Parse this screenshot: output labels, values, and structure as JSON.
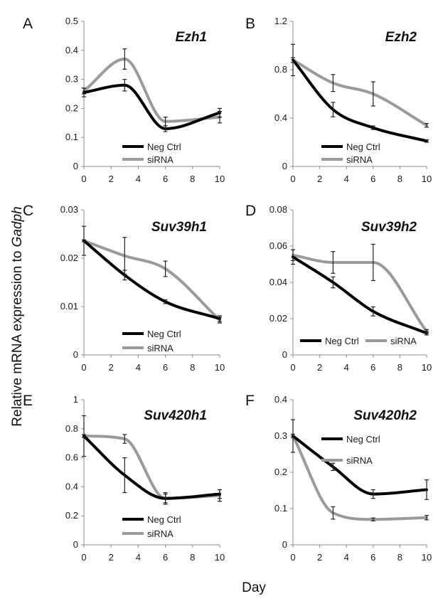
{
  "figure": {
    "ylabel_prefix": "Relative mRNA expression to ",
    "ylabel_gene": "Gadph",
    "xlabel": "Day"
  },
  "colors": {
    "neg": "#000000",
    "sirna": "#9a9a9a"
  },
  "chart_data": [
    {
      "panel": "A",
      "title": "Ezh1",
      "type": "line",
      "ylim": [
        0,
        0.5
      ],
      "yticks": [
        "0",
        "0.1",
        "0.2",
        "0.3",
        "0.4",
        "0.5"
      ],
      "xlim": [
        0,
        10
      ],
      "xticks": [
        "0",
        "2",
        "4",
        "6",
        "8",
        "10"
      ],
      "legend_position": "lower-middle",
      "series": [
        {
          "name": "Neg Ctrl",
          "color": "#000000",
          "x": [
            0,
            3,
            6,
            10
          ],
          "y": [
            0.255,
            0.28,
            0.13,
            0.185
          ],
          "err": [
            0.015,
            0.02,
            0.01,
            0.015
          ]
        },
        {
          "name": "siRNA",
          "color": "#9a9a9a",
          "x": [
            0,
            3,
            6,
            10
          ],
          "y": [
            0.26,
            0.37,
            0.155,
            0.17
          ],
          "err": [
            0.01,
            0.035,
            0.015,
            0.02
          ]
        }
      ]
    },
    {
      "panel": "B",
      "title": "Ezh2",
      "type": "line",
      "ylim": [
        0,
        1.2
      ],
      "yticks": [
        "0",
        "0.4",
        "0.8",
        "1.2"
      ],
      "xlim": [
        0,
        10
      ],
      "xticks": [
        "0",
        "2",
        "4",
        "6",
        "8",
        "10"
      ],
      "legend_position": "lower-middle",
      "series": [
        {
          "name": "Neg Ctrl",
          "color": "#000000",
          "x": [
            0,
            3,
            6,
            10
          ],
          "y": [
            0.88,
            0.47,
            0.32,
            0.21
          ],
          "err": [
            0.13,
            0.06,
            0.015,
            0.01
          ]
        },
        {
          "name": "siRNA",
          "color": "#9a9a9a",
          "x": [
            0,
            3,
            6,
            10
          ],
          "y": [
            0.88,
            0.69,
            0.6,
            0.34
          ],
          "err": [
            0.02,
            0.07,
            0.1,
            0.015
          ]
        }
      ]
    },
    {
      "panel": "C",
      "title": "Suv39h1",
      "type": "line",
      "ylim": [
        0,
        0.03
      ],
      "yticks": [
        "0",
        "0.01",
        "0.02",
        "0.03"
      ],
      "xlim": [
        0,
        10
      ],
      "xticks": [
        "0",
        "2",
        "4",
        "6",
        "8",
        "10"
      ],
      "legend_position": "lower-middle",
      "series": [
        {
          "name": "Neg Ctrl",
          "color": "#000000",
          "x": [
            0,
            3,
            6,
            10
          ],
          "y": [
            0.0236,
            0.0165,
            0.011,
            0.0075
          ],
          "err": [
            0.003,
            0.001,
            0.0004,
            0.0006
          ]
        },
        {
          "name": "siRNA",
          "color": "#9a9a9a",
          "x": [
            0,
            3,
            6,
            10
          ],
          "y": [
            0.0236,
            0.0205,
            0.0178,
            0.0072
          ],
          "err": [
            0.0002,
            0.0038,
            0.0016,
            0.0006
          ]
        }
      ]
    },
    {
      "panel": "D",
      "title": "Suv39h2",
      "type": "line",
      "ylim": [
        0,
        0.08
      ],
      "yticks": [
        "0",
        "0.02",
        "0.04",
        "0.06",
        "0.08"
      ],
      "xlim": [
        0,
        10
      ],
      "xticks": [
        "0",
        "2",
        "4",
        "6",
        "8",
        "10"
      ],
      "legend_position": "bottom",
      "series": [
        {
          "name": "Neg Ctrl",
          "color": "#000000",
          "x": [
            0,
            3,
            6,
            10
          ],
          "y": [
            0.054,
            0.04,
            0.024,
            0.012
          ],
          "err": [
            0.004,
            0.003,
            0.0025,
            0.001
          ]
        },
        {
          "name": "siRNA",
          "color": "#9a9a9a",
          "x": [
            0,
            3,
            6,
            10
          ],
          "y": [
            0.055,
            0.051,
            0.051,
            0.013
          ],
          "err": [
            0.003,
            0.006,
            0.01,
            0.001
          ]
        }
      ]
    },
    {
      "panel": "E",
      "title": "Suv420h1",
      "type": "line",
      "ylim": [
        0,
        1
      ],
      "yticks": [
        "0",
        "0.2",
        "0.4",
        "0.6",
        "0.8",
        "1"
      ],
      "xlim": [
        0,
        10
      ],
      "xticks": [
        "0",
        "2",
        "4",
        "6",
        "8",
        "10"
      ],
      "legend_position": "lower-middle",
      "series": [
        {
          "name": "Neg Ctrl",
          "color": "#000000",
          "x": [
            0,
            3,
            6,
            10
          ],
          "y": [
            0.75,
            0.48,
            0.32,
            0.35
          ],
          "err": [
            0.14,
            0.12,
            0.04,
            0.03
          ]
        },
        {
          "name": "siRNA",
          "color": "#9a9a9a",
          "x": [
            0,
            3,
            6,
            10
          ],
          "y": [
            0.75,
            0.73,
            0.32,
            0.34
          ],
          "err": [
            0.01,
            0.03,
            0.03,
            0.04
          ]
        }
      ]
    },
    {
      "panel": "F",
      "title": "Suv420h2",
      "type": "line",
      "ylim": [
        0,
        0.4
      ],
      "yticks": [
        "0",
        "0.1",
        "0.2",
        "0.3",
        "0.4"
      ],
      "xlim": [
        0,
        10
      ],
      "xticks": [
        "0",
        "2",
        "4",
        "6",
        "8",
        "10"
      ],
      "legend_position": "upper-middle",
      "series": [
        {
          "name": "Neg Ctrl",
          "color": "#000000",
          "x": [
            0,
            3,
            6,
            10
          ],
          "y": [
            0.3,
            0.215,
            0.14,
            0.152
          ],
          "err": [
            0.045,
            0.01,
            0.012,
            0.027
          ]
        },
        {
          "name": "siRNA",
          "color": "#9a9a9a",
          "x": [
            0,
            3,
            6,
            10
          ],
          "y": [
            0.3,
            0.088,
            0.07,
            0.075
          ],
          "err": [
            0.005,
            0.017,
            0.004,
            0.006
          ]
        }
      ]
    }
  ]
}
